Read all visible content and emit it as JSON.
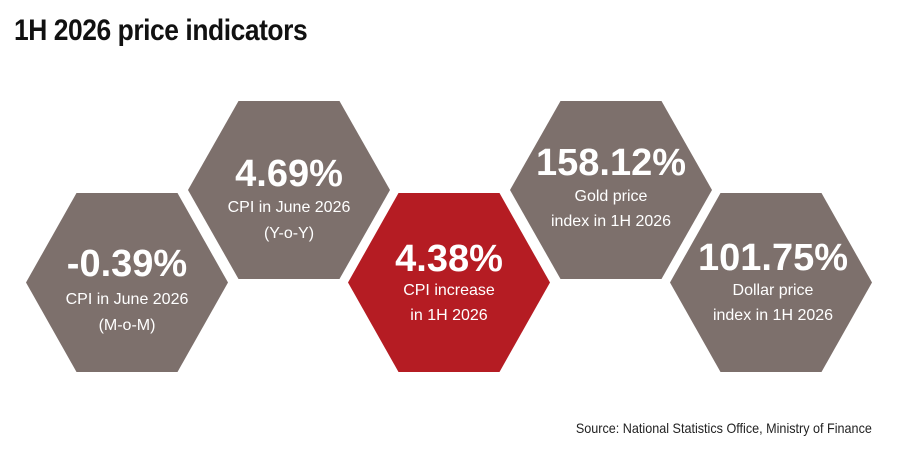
{
  "title": "1H 2026 price indicators",
  "colors": {
    "hex_default": "#7d706c",
    "hex_highlight": "#b51c23",
    "text": "#ffffff"
  },
  "indicators": [
    {
      "value": "-0.39%",
      "line1": "CPI in June 2026",
      "line2": "(M-o-M)",
      "highlight": false
    },
    {
      "value": "4.69%",
      "line1": "CPI in June 2026",
      "line2": "(Y-o-Y)",
      "highlight": false
    },
    {
      "value": "4.38%",
      "line1": "CPI increase",
      "line2": "in 1H 2026",
      "highlight": true
    },
    {
      "value": "158.12%",
      "line1": "Gold price",
      "line2": "index in 1H 2026",
      "highlight": false
    },
    {
      "value": "101.75%",
      "line1": "Dollar price",
      "line2": "index in 1H 2026",
      "highlight": false
    }
  ],
  "source": "Source: National Statistics Office, Ministry of Finance"
}
